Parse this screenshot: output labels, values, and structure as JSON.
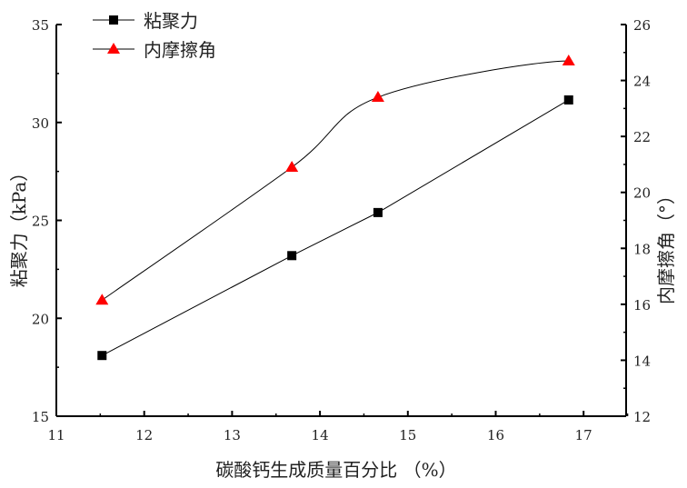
{
  "chart_data": {
    "type": "line",
    "xlabel": "碳酸钙生成质量百分比 （%）",
    "ylabel_left": "粘聚力（kPa）",
    "ylabel_right": "内摩擦角（°）",
    "xlim": [
      11,
      17.5
    ],
    "ylim_left": [
      15,
      35
    ],
    "ylim_right": [
      12,
      26
    ],
    "x_ticks": [
      11,
      12,
      13,
      14,
      15,
      16,
      17
    ],
    "y_ticks_left": [
      15,
      20,
      25,
      30,
      35
    ],
    "y_ticks_right": [
      12,
      14,
      16,
      18,
      20,
      22,
      24,
      26
    ],
    "grid": false,
    "legend_position": "top-left",
    "series": [
      {
        "name": "粘聚力",
        "axis": "left",
        "marker": "square",
        "color": "#000000",
        "x": [
          11.52,
          13.68,
          14.66,
          16.83
        ],
        "y": [
          18.1,
          23.2,
          25.4,
          31.15
        ]
      },
      {
        "name": "内摩擦角",
        "axis": "right",
        "marker": "triangle",
        "color": "#ff0000",
        "x": [
          11.52,
          13.68,
          14.66,
          16.83
        ],
        "y": [
          16.15,
          20.9,
          23.4,
          24.7
        ]
      }
    ]
  }
}
